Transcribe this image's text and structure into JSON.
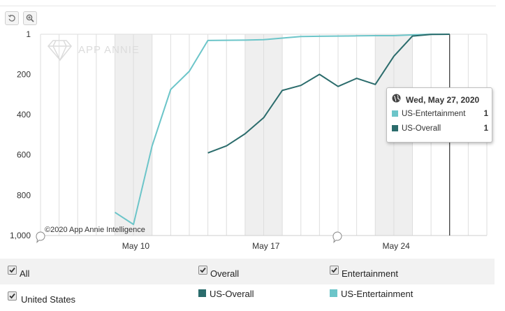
{
  "toolbar": {
    "reset_icon": "reset-zoom-icon",
    "zoom_icon": "zoom-in-icon"
  },
  "chart_data": {
    "type": "line",
    "y_axis": {
      "reversed": true,
      "range": [
        1,
        1000
      ],
      "ticks": [
        1,
        200,
        400,
        600,
        800,
        1000
      ],
      "tick_labels": [
        "1",
        "200",
        "400",
        "600",
        "800",
        "1,000"
      ]
    },
    "x_axis": {
      "range": [
        "2020-05-05",
        "2020-05-29"
      ],
      "tick_labels": [
        "May 10",
        "May 17",
        "May 24"
      ],
      "tick_dates": [
        "2020-05-10",
        "2020-05-17",
        "2020-05-24"
      ]
    },
    "weekend_bands": [
      [
        "2020-05-09",
        "2020-05-10"
      ],
      [
        "2020-05-16",
        "2020-05-17"
      ],
      [
        "2020-05-23",
        "2020-05-24"
      ]
    ],
    "grid": "vertical-daily",
    "series": [
      {
        "name": "US-Entertainment",
        "color": "#6cc5c9",
        "points": [
          [
            "2020-05-09",
            885
          ],
          [
            "2020-05-10",
            945
          ],
          [
            "2020-05-11",
            555
          ],
          [
            "2020-05-12",
            275
          ],
          [
            "2020-05-13",
            185
          ],
          [
            "2020-05-14",
            32
          ],
          [
            "2020-05-15",
            31
          ],
          [
            "2020-05-16",
            30
          ],
          [
            "2020-05-17",
            28
          ],
          [
            "2020-05-18",
            20
          ],
          [
            "2020-05-19",
            12
          ],
          [
            "2020-05-20",
            11
          ],
          [
            "2020-05-21",
            10
          ],
          [
            "2020-05-22",
            9
          ],
          [
            "2020-05-23",
            8
          ],
          [
            "2020-05-24",
            8
          ],
          [
            "2020-05-25",
            4
          ],
          [
            "2020-05-26",
            1
          ],
          [
            "2020-05-27",
            1
          ]
        ]
      },
      {
        "name": "US-Overall",
        "color": "#2b6c6c",
        "points": [
          [
            "2020-05-14",
            590
          ],
          [
            "2020-05-15",
            555
          ],
          [
            "2020-05-16",
            495
          ],
          [
            "2020-05-17",
            415
          ],
          [
            "2020-05-18",
            280
          ],
          [
            "2020-05-19",
            255
          ],
          [
            "2020-05-20",
            200
          ],
          [
            "2020-05-21",
            260
          ],
          [
            "2020-05-22",
            220
          ],
          [
            "2020-05-23",
            250
          ],
          [
            "2020-05-24",
            110
          ],
          [
            "2020-05-25",
            10
          ],
          [
            "2020-05-26",
            2
          ],
          [
            "2020-05-27",
            1
          ]
        ]
      }
    ],
    "watermark": "APP ANNIE",
    "copyright": "©2020 App Annie Intelligence",
    "crosshair_date": "2020-05-27"
  },
  "tooltip": {
    "date": "Wed, May 27, 2020",
    "rows": [
      {
        "label": "US-Entertainment",
        "value": "1",
        "color": "#6cc5c9"
      },
      {
        "label": "US-Overall",
        "value": "1",
        "color": "#2b6c6c"
      }
    ]
  },
  "controls": {
    "all": "All",
    "overall": "Overall",
    "entertainment": "Entertainment",
    "country": "United States",
    "legend_overall": "US-Overall",
    "legend_entertainment": "US-Entertainment",
    "legend_overall_color": "#2b6c6c",
    "legend_entertainment_color": "#6cc5c9"
  }
}
